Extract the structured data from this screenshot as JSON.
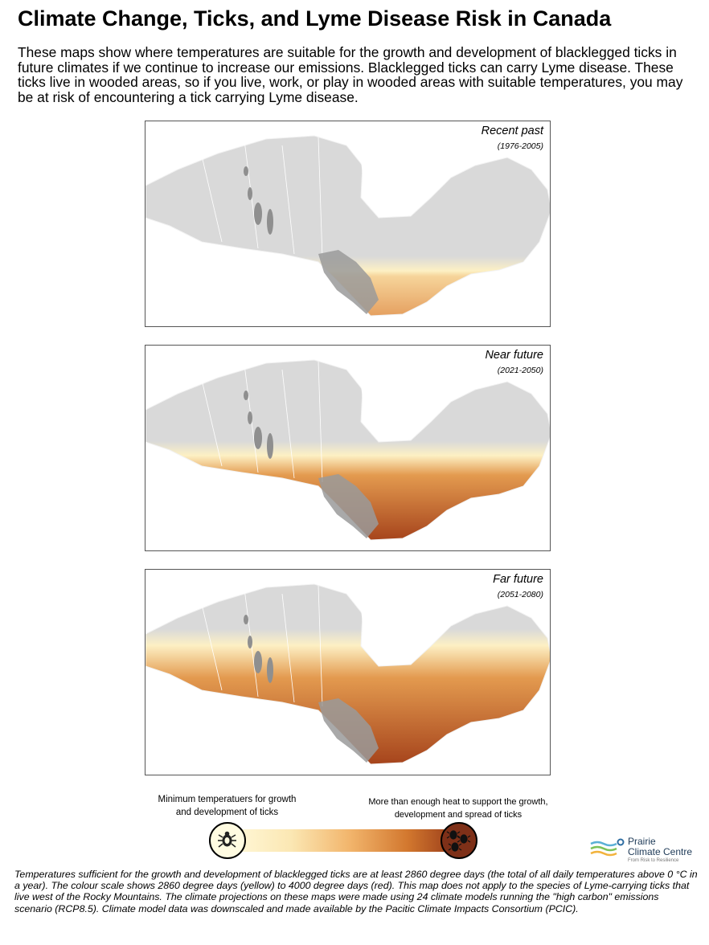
{
  "title": "Climate Change, Ticks, and Lyme Disease Risk in Canada",
  "intro": "These maps show where temperatures are suitable for the growth and development of blacklegged ticks in future climates if we continue to increase our emissions. Blacklegged ticks can carry Lyme disease. These ticks  live in wooded areas, so if you live, work, or play in wooded areas with suitable temperatures, you may be at risk of encountering a tick carrying Lyme disease.",
  "maps": [
    {
      "period": "Recent past",
      "years": "(1976-2005)",
      "intensity": 0.15
    },
    {
      "period": "Near future",
      "years": "(2021-2050)",
      "intensity": 0.55
    },
    {
      "period": "Far future",
      "years": "(2051-2080)",
      "intensity": 0.9
    }
  ],
  "legend": {
    "min_label": "Minimum temperatuers for growth and development of ticks",
    "max_label": "More than enough heat to support the growth, development and spread of ticks",
    "colors": [
      "#fff8d8",
      "#f2b56c",
      "#8b2f15"
    ]
  },
  "logo": {
    "line1": "Prairie",
    "line2": "Climate Centre",
    "tagline": "From Risk to Resilience"
  },
  "footnote": "Temperatures sufficient for the growth and development of blacklegged ticks are at least 2860 degree days (the total of all daily temperatures above 0 °C in a year). The colour scale shows 2860 degree days (yellow) to 4000 degree days (red). This map does not apply to the species of Lyme-carrying ticks that live west of the Rocky Mountains. The climate projections on these maps were made using 24 climate models running the \"high carbon\" emissions scenario (RCP8.5). Climate model data was downscaled and made available by the Pacitic Climate Impacts Consortium (PCIC)."
}
